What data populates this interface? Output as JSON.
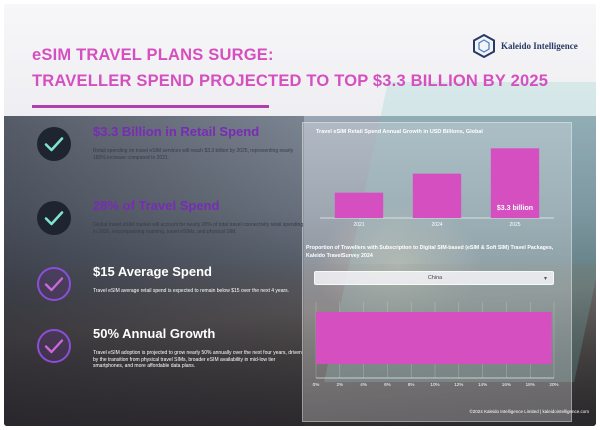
{
  "header": {
    "title_line1": "eSIM TRAVEL PLANS SURGE:",
    "title_line2": "TRAVELLER SPEND PROJECTED TO TOP $3.3 BILLION BY 2025",
    "accent": "#d64fc0",
    "rule_color": "#b03fb0"
  },
  "logo": {
    "name": "Kaleido Intelligence",
    "icon": "hexagon-logo-icon",
    "color": "#2a3a66"
  },
  "stats": [
    {
      "headline": "$3.3 Billion in Retail Spend",
      "body": "Retail spending on travel eSIM services will reach $3.3 billion by 2025, representing nearly 180% increase compared to 2021.",
      "icon": "check-circle-icon"
    },
    {
      "headline": "28% of Travel Spend",
      "body": "Global travel eSIM market will account for nearly 28% of total travel connectivity retail spending in 2025, encompassing roaming, travel eSIMs, and physical SIM.",
      "icon": "check-circle-icon"
    },
    {
      "headline": "$15 Average Spend",
      "body": "Travel eSIM average retail spend is expected to remain below $15 over the next 4 years.",
      "icon": "check-circle-icon"
    },
    {
      "headline": "50% Annual Growth",
      "body": "Travel eSIM adoption is projected to grow nearly 50% annually over the next four years, driven by the transition from physical travel SIMs, broader eSIM availability in mid-low tier smartphones, and more affordable data plans.",
      "icon": "check-circle-icon"
    }
  ],
  "chart_data": [
    {
      "type": "bar",
      "title": "Travel eSIM Retail Spend Annual Growth in USD Billions, Global",
      "categories": [
        "2021",
        "2024",
        "2025"
      ],
      "values": [
        1.2,
        2.1,
        3.3
      ],
      "data_labels": [
        "",
        "",
        "$3.3 billion"
      ],
      "ylim": [
        0,
        3.6
      ],
      "bar_color": "#d64fc0",
      "grid": false
    },
    {
      "type": "bar",
      "orientation": "horizontal",
      "title": "Proportion of Travellers with Subscription to Digital SIM-based (eSIM & Soft SIM) Travel Packages, Kaleido TravelSurvey 2024",
      "filter_label": "China",
      "categories": [
        "China"
      ],
      "values": [
        19.8
      ],
      "x_ticks": [
        "0%",
        "2%",
        "4%",
        "6%",
        "8%",
        "10%",
        "12%",
        "14%",
        "16%",
        "18%",
        "20%"
      ],
      "xlim": [
        0,
        20
      ],
      "bar_color": "#d64fc0",
      "grid": true
    }
  ],
  "footer": {
    "text": "©2024 Kaleido Intelligence Limited | kaleidointelligence.com"
  }
}
